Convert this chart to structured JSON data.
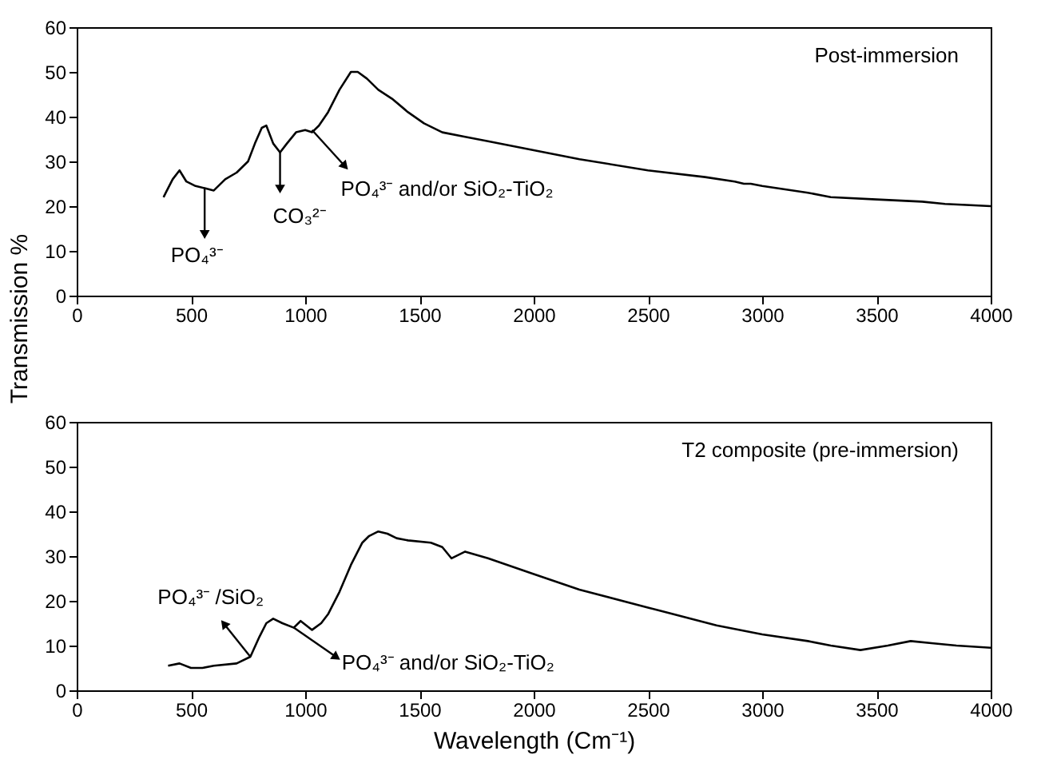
{
  "chart_data": [
    {
      "type": "line",
      "title": "Post-immersion",
      "ylabel": "Transmission %",
      "xlim": [
        0,
        4000
      ],
      "xticks": [
        0,
        500,
        1000,
        1500,
        2000,
        2500,
        3000,
        3500,
        4000
      ],
      "ylim": [
        0,
        60
      ],
      "yticks": [
        0,
        10,
        20,
        30,
        40,
        50,
        60
      ],
      "series": [
        {
          "color": "#000000",
          "x": [
            380,
            390,
            420,
            450,
            480,
            520,
            560,
            600,
            650,
            700,
            750,
            780,
            810,
            830,
            860,
            890,
            920,
            960,
            1000,
            1030,
            1060,
            1100,
            1150,
            1200,
            1230,
            1270,
            1320,
            1380,
            1450,
            1520,
            1600,
            1700,
            1800,
            2000,
            2200,
            2500,
            2750,
            2880,
            2920,
            2950,
            3000,
            3200,
            3300,
            3500,
            3700,
            3800,
            4000
          ],
          "values": [
            22,
            23,
            26,
            28,
            25.5,
            24.5,
            24,
            23.5,
            26,
            27.5,
            30,
            34,
            37.5,
            38,
            34,
            32,
            34,
            36.5,
            37,
            36.5,
            38,
            41,
            46,
            50,
            50,
            48.5,
            46,
            44,
            41,
            38.5,
            36.5,
            35.5,
            34.5,
            32.5,
            30.5,
            28,
            26.5,
            25.5,
            25,
            25,
            24.5,
            23,
            22,
            21.5,
            21,
            20.5,
            20
          ]
        }
      ],
      "annotations": [
        {
          "text": "PO₄³⁻",
          "x": 560,
          "y": 24
        },
        {
          "text": "CO₃²⁻",
          "x": 890,
          "y": 32
        },
        {
          "text": "PO₄³⁻ and/or SiO₂-TiO₂",
          "x": 1030,
          "y": 37
        }
      ]
    },
    {
      "type": "line",
      "title": "T2 composite (pre-immersion)",
      "xlabel": "Wavelength (Cm⁻¹)",
      "xlim": [
        0,
        4000
      ],
      "xticks": [
        0,
        500,
        1000,
        1500,
        2000,
        2500,
        3000,
        3500,
        4000
      ],
      "ylim": [
        0,
        60
      ],
      "yticks": [
        0,
        10,
        20,
        30,
        40,
        50,
        60
      ],
      "series": [
        {
          "color": "#000000",
          "x": [
            400,
            450,
            500,
            550,
            600,
            700,
            760,
            800,
            830,
            860,
            900,
            950,
            980,
            1030,
            1070,
            1100,
            1150,
            1200,
            1250,
            1280,
            1320,
            1360,
            1400,
            1450,
            1550,
            1600,
            1640,
            1700,
            1800,
            2000,
            2200,
            2500,
            2800,
            3000,
            3200,
            3300,
            3430,
            3550,
            3650,
            3750,
            3850,
            4000
          ],
          "values": [
            5.5,
            6,
            5,
            5,
            5.5,
            6,
            7.5,
            12,
            15,
            16,
            15,
            14,
            15.5,
            13.5,
            15,
            17,
            22,
            28,
            33,
            34.5,
            35.5,
            35,
            34,
            33.5,
            33,
            32,
            29.5,
            31,
            29.5,
            26,
            22.5,
            18.5,
            14.5,
            12.5,
            11,
            10,
            9,
            10,
            11,
            10.5,
            10,
            9.5
          ]
        }
      ],
      "annotations": [
        {
          "text": "PO₄³⁻ /SiO₂",
          "x": 760,
          "y": 7.5
        },
        {
          "text": "PO₄³⁻ and/or SiO₂-TiO₂",
          "x": 950,
          "y": 14
        }
      ]
    }
  ]
}
